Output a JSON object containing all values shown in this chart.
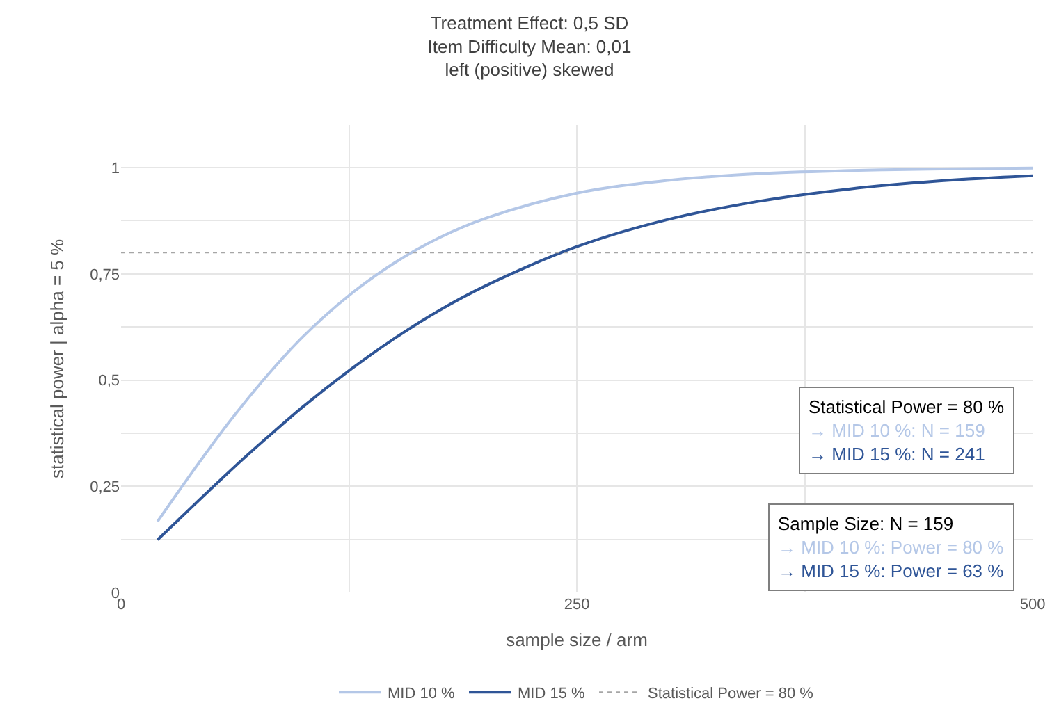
{
  "chart_data": {
    "type": "line",
    "title": "Treatment Effect: 0,5 SD\nItem Difficulty Mean: 0,01\nleft (positive) skewed",
    "xlabel": "sample size / arm",
    "ylabel": "statistical power | alpha = 5 %",
    "x": [
      20,
      40,
      60,
      80,
      100,
      125,
      150,
      175,
      200,
      250,
      300,
      350,
      400,
      450,
      500
    ],
    "series": [
      {
        "name": "MID 10 %",
        "color": "#b4c7e7",
        "values": [
          0.167,
          0.289,
          0.405,
          0.51,
          0.603,
          0.699,
          0.776,
          0.836,
          0.881,
          0.94,
          0.97,
          0.986,
          0.993,
          0.997,
          0.999
        ]
      },
      {
        "name": "MID 15 %",
        "color": "#2f5597",
        "values": [
          0.124,
          0.206,
          0.287,
          0.364,
          0.438,
          0.522,
          0.598,
          0.665,
          0.722,
          0.814,
          0.878,
          0.921,
          0.95,
          0.969,
          0.981
        ]
      }
    ],
    "ref_lines": [
      {
        "axis": "y",
        "value": 0.8,
        "label": "Statistical Power = 80 %",
        "color": "#a6a6a6",
        "line_style": "dotted"
      }
    ],
    "annotations": [
      "Statistical Power = 80 %\n→ MID 10 %: N = 159\n→ MID 15 %: N = 241",
      "Sample Size: N = 159\n→ MID 10 %: Power = 80 %\n→ MID 15 %: Power = 63 %"
    ],
    "xlim": [
      0,
      500
    ],
    "ylim": [
      0,
      1.1
    ],
    "xticks": [
      0,
      {
        "value": 125,
        "label": null
      },
      250,
      {
        "value": 375,
        "label": null
      },
      500
    ],
    "yticks": [
      0,
      {
        "value": 0.125,
        "label": null
      },
      {
        "value": 0.25,
        "label": "0,25"
      },
      {
        "value": 0.375,
        "label": null
      },
      {
        "value": 0.5,
        "label": "0,5"
      },
      {
        "value": 0.625,
        "label": null
      },
      {
        "value": 0.75,
        "label": "0,75"
      },
      {
        "value": 0.875,
        "label": null
      },
      1
    ],
    "grid": true,
    "legend": "bottom",
    "marker": "none",
    "line_style": "solid"
  }
}
